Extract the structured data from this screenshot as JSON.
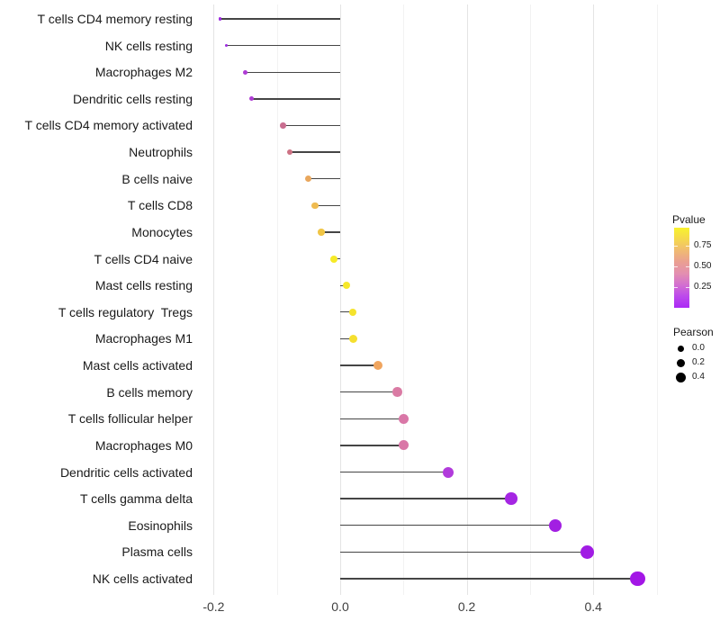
{
  "figure": {
    "background": "#ffffff"
  },
  "chart_data": {
    "type": "lollipop",
    "orientation": "horizontal",
    "title": "",
    "xlabel": "",
    "ylabel": "",
    "xlim": [
      -0.223,
      0.503
    ],
    "grid": "vertical-only",
    "x_ticks": [
      {
        "label": "-0.2",
        "value": -0.2
      },
      {
        "label": "0.0",
        "value": 0.0
      },
      {
        "label": "0.2",
        "value": 0.2
      },
      {
        "label": "0.4",
        "value": 0.4
      }
    ],
    "minor_gridlines": [
      -0.1,
      0.1,
      0.3,
      0.5
    ],
    "points": [
      {
        "label": "T cells CD4 memory resting",
        "pearson": -0.19,
        "pvalue_est": 0.06,
        "color": "#9d2be0",
        "dot_diameter": 3.5
      },
      {
        "label": "NK cells resting",
        "pearson": -0.18,
        "pvalue_est": 0.07,
        "color": "#9d2be0",
        "dot_diameter": 3.5
      },
      {
        "label": "Macrophages M2",
        "pearson": -0.15,
        "pvalue_est": 0.13,
        "color": "#ae3bd4",
        "dot_diameter": 5
      },
      {
        "label": "Dendritic cells resting",
        "pearson": -0.14,
        "pvalue_est": 0.14,
        "color": "#ae3bd4",
        "dot_diameter": 5
      },
      {
        "label": "T cells CD4 memory activated",
        "pearson": -0.09,
        "pvalue_est": 0.38,
        "color": "#c96e90",
        "dot_diameter": 6.5
      },
      {
        "label": "Neutrophils",
        "pearson": -0.08,
        "pvalue_est": 0.42,
        "color": "#cd7284",
        "dot_diameter": 6.5
      },
      {
        "label": "B cells naive",
        "pearson": -0.05,
        "pvalue_est": 0.62,
        "color": "#e9a75d",
        "dot_diameter": 7
      },
      {
        "label": "T cells CD8",
        "pearson": -0.04,
        "pvalue_est": 0.68,
        "color": "#efbb50",
        "dot_diameter": 7.5
      },
      {
        "label": "Monocytes",
        "pearson": -0.03,
        "pvalue_est": 0.72,
        "color": "#f0c545",
        "dot_diameter": 7.5
      },
      {
        "label": "T cells CD4 naive",
        "pearson": -0.01,
        "pvalue_est": 0.9,
        "color": "#f6ea27",
        "dot_diameter": 8
      },
      {
        "label": "Mast cells resting",
        "pearson": 0.01,
        "pvalue_est": 0.89,
        "color": "#f6e82a",
        "dot_diameter": 8.5
      },
      {
        "label": "T cells regulatory  Tregs",
        "pearson": 0.02,
        "pvalue_est": 0.87,
        "color": "#f5e32c",
        "dot_diameter": 8.5
      },
      {
        "label": "Macrophages M1",
        "pearson": 0.02,
        "pvalue_est": 0.85,
        "color": "#f5df2f",
        "dot_diameter": 9
      },
      {
        "label": "Mast cells activated",
        "pearson": 0.06,
        "pvalue_est": 0.6,
        "color": "#f0a55f",
        "dot_diameter": 10
      },
      {
        "label": "B cells memory",
        "pearson": 0.09,
        "pvalue_est": 0.4,
        "color": "#da7ba4",
        "dot_diameter": 10.5
      },
      {
        "label": "T cells follicular helper",
        "pearson": 0.1,
        "pvalue_est": 0.38,
        "color": "#d977a7",
        "dot_diameter": 11
      },
      {
        "label": "Macrophages M0",
        "pearson": 0.1,
        "pvalue_est": 0.37,
        "color": "#d977a7",
        "dot_diameter": 11
      },
      {
        "label": "Dendritic cells activated",
        "pearson": 0.17,
        "pvalue_est": 0.12,
        "color": "#b13bdb",
        "dot_diameter": 12
      },
      {
        "label": "T cells gamma delta",
        "pearson": 0.27,
        "pvalue_est": 0.03,
        "color": "#a526e3",
        "dot_diameter": 13.5
      },
      {
        "label": "Eosinophils",
        "pearson": 0.34,
        "pvalue_est": 0.02,
        "color": "#a21fe2",
        "dot_diameter": 14.5
      },
      {
        "label": "Plasma cells",
        "pearson": 0.39,
        "pvalue_est": 0.015,
        "color": "#a11ce4",
        "dot_diameter": 15
      },
      {
        "label": "NK cells activated",
        "pearson": 0.47,
        "pvalue_est": 0.01,
        "color": "#a316e6",
        "dot_diameter": 16.5
      }
    ],
    "legend": {
      "pvalue": {
        "title": "Pvalue",
        "range": [
          0,
          0.97
        ],
        "ticks": [
          {
            "label": "0.75",
            "value": 0.75
          },
          {
            "label": "0.50",
            "value": 0.5
          },
          {
            "label": "0.25",
            "value": 0.25
          }
        ],
        "gradient_bottom_to_top": [
          "#ab29f5",
          "#bc49ec",
          "#d36fd0",
          "#e38fb0",
          "#ea9f92",
          "#f0ba72",
          "#f5d84d",
          "#f8f22d"
        ]
      },
      "pearson": {
        "title": "Pearson",
        "dot_color": "#000000",
        "items": [
          {
            "label": "0.0",
            "diameter": 7
          },
          {
            "label": "0.2",
            "diameter": 9
          },
          {
            "label": "0.4",
            "diameter": 11
          }
        ]
      }
    },
    "style": {
      "stem_color": "#454545",
      "grid_major": "#e4e4e4",
      "grid_minor": "#f2f2f2",
      "axis_text_color": "#404040",
      "label_text_color": "#1a1a1a"
    }
  }
}
